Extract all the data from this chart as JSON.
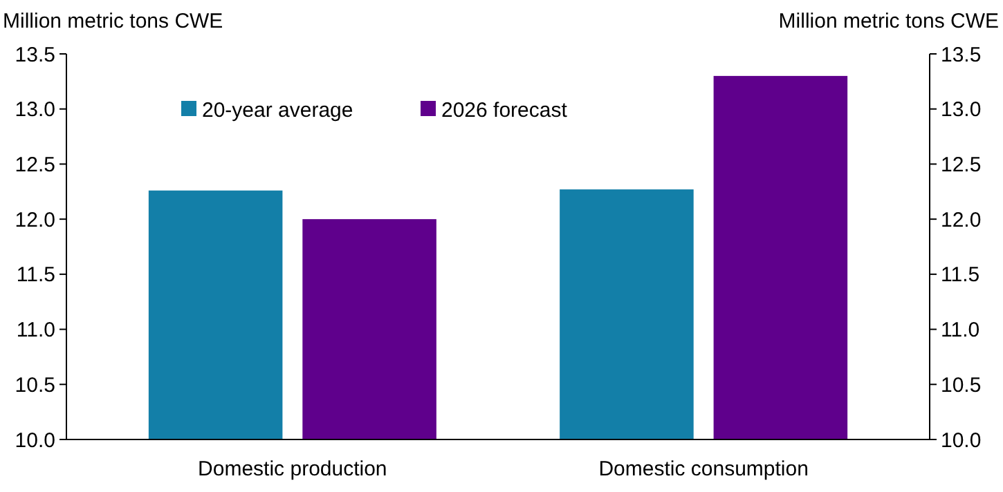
{
  "chart_data": {
    "type": "bar",
    "ylabel": "Million metric tons CWE",
    "y2label": "Million metric tons CWE",
    "categories": [
      "Domestic production",
      "Domestic consumption"
    ],
    "series": [
      {
        "name": "20-year average",
        "color": "#137fa8",
        "values": [
          12.26,
          12.27
        ]
      },
      {
        "name": "2026 forecast",
        "color": "#5f008c",
        "values": [
          12.0,
          13.3
        ]
      }
    ],
    "ylim": [
      10,
      13.5
    ],
    "yticks": [
      {
        "value": 10,
        "label": "10.0"
      },
      10.5,
      {
        "value": 11,
        "label": "11.0"
      },
      11.5,
      {
        "value": 12,
        "label": "12.0"
      },
      12.5,
      {
        "value": 13,
        "label": "13.0"
      },
      13.5
    ],
    "y2lim": [
      10,
      13.5
    ],
    "y2ticks": [
      {
        "value": 10,
        "label": "10.0"
      },
      10.5,
      {
        "value": 11,
        "label": "11.0"
      },
      11.5,
      {
        "value": 12,
        "label": "12.0"
      },
      12.5,
      {
        "value": 13,
        "label": "13.0"
      },
      13.5
    ],
    "grid": false,
    "legend": "top left"
  }
}
